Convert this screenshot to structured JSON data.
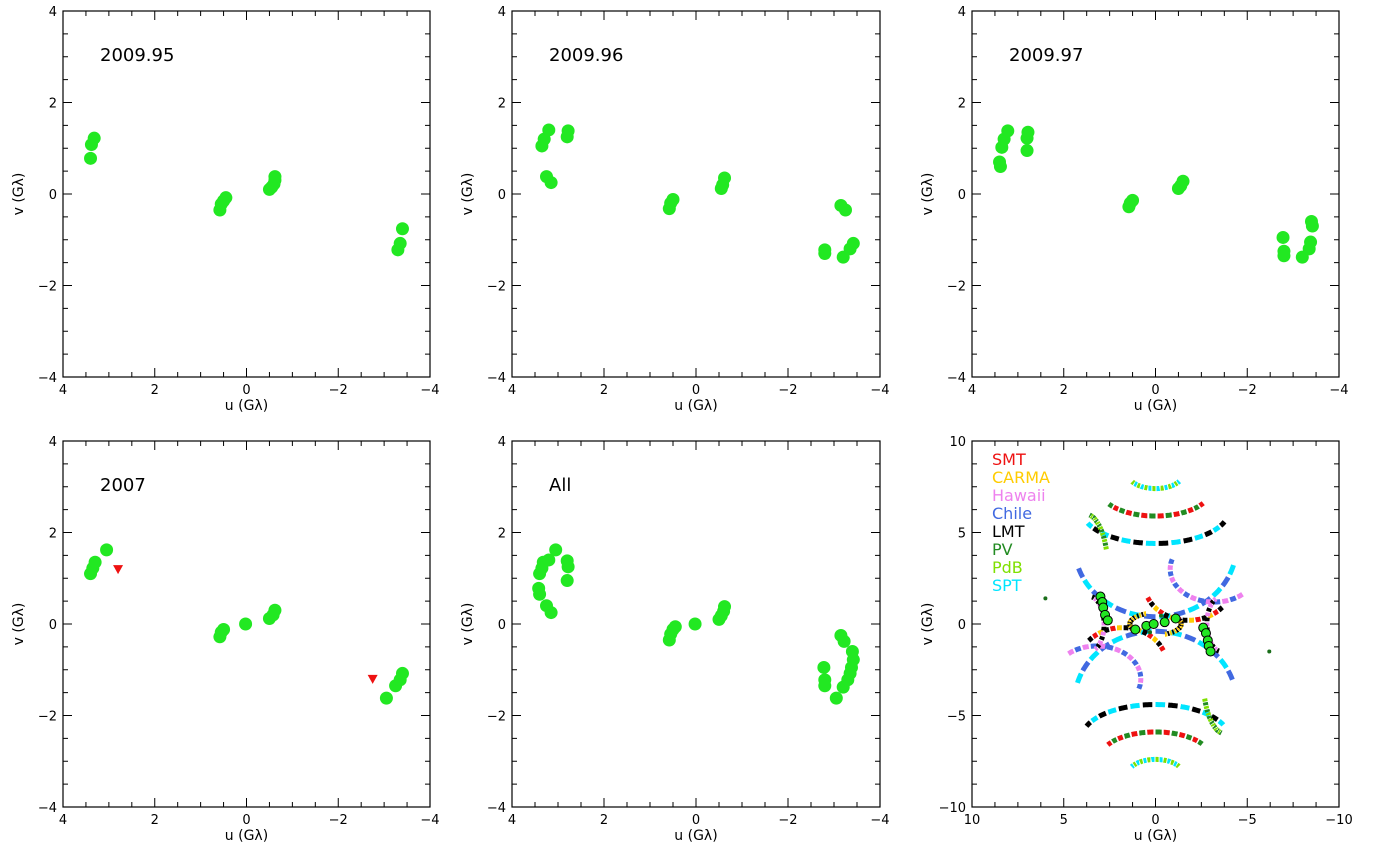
{
  "colors": {
    "point": "#22e822",
    "nondetection": "#ee1111",
    "SMT": "#ee1111",
    "CARMA": "#ffcc00",
    "Hawaii": "#ee82ee",
    "Chile": "#4169e1",
    "LMT": "#000000",
    "PV": "#228b22",
    "PdB": "#7fe000",
    "SPT": "#00e5ff"
  },
  "chart_data": [
    {
      "type": "scatter",
      "label": "2009.95",
      "xlabel": "u (Gλ)",
      "ylabel": "v (Gλ)",
      "xlim": [
        4,
        -4
      ],
      "ylim": [
        -4,
        4
      ],
      "xticks": [
        4,
        2,
        0,
        -2,
        -4
      ],
      "yticks": [
        -4,
        -2,
        0,
        2,
        4
      ],
      "points": [
        [
          3.4,
          0.78
        ],
        [
          3.38,
          1.08
        ],
        [
          3.32,
          1.22
        ],
        [
          0.58,
          -0.35
        ],
        [
          0.55,
          -0.22
        ],
        [
          0.5,
          -0.15
        ],
        [
          0.45,
          -0.08
        ],
        [
          -0.5,
          0.1
        ],
        [
          -0.55,
          0.15
        ],
        [
          -0.6,
          0.22
        ],
        [
          -0.62,
          0.3
        ],
        [
          -0.62,
          0.38
        ],
        [
          -3.3,
          -1.22
        ],
        [
          -3.35,
          -1.08
        ],
        [
          -3.4,
          -0.76
        ]
      ],
      "nondetections": []
    },
    {
      "type": "scatter",
      "label": "2009.96",
      "xlabel": "u (Gλ)",
      "ylabel": "v (Gλ)",
      "xlim": [
        4,
        -4
      ],
      "ylim": [
        -4,
        4
      ],
      "xticks": [
        4,
        2,
        0,
        -2,
        -4
      ],
      "yticks": [
        -4,
        -2,
        0,
        2,
        4
      ],
      "points": [
        [
          3.35,
          1.05
        ],
        [
          3.3,
          1.2
        ],
        [
          3.2,
          1.4
        ],
        [
          2.8,
          1.25
        ],
        [
          2.78,
          1.38
        ],
        [
          3.25,
          0.38
        ],
        [
          3.15,
          0.25
        ],
        [
          0.58,
          -0.32
        ],
        [
          0.55,
          -0.2
        ],
        [
          0.5,
          -0.12
        ],
        [
          -0.55,
          0.12
        ],
        [
          -0.58,
          0.2
        ],
        [
          -0.62,
          0.35
        ],
        [
          -2.8,
          -1.3
        ],
        [
          -2.8,
          -1.22
        ],
        [
          -3.15,
          -0.25
        ],
        [
          -3.25,
          -0.35
        ],
        [
          -3.2,
          -1.38
        ],
        [
          -3.35,
          -1.2
        ],
        [
          -3.42,
          -1.08
        ]
      ],
      "nondetections": []
    },
    {
      "type": "scatter",
      "label": "2009.97",
      "xlabel": "u (Gλ)",
      "ylabel": "v (Gλ)",
      "xlim": [
        4,
        -4
      ],
      "ylim": [
        -4,
        4
      ],
      "xticks": [
        4,
        2,
        0,
        -2,
        -4
      ],
      "yticks": [
        -4,
        -2,
        0,
        2,
        4
      ],
      "points": [
        [
          3.4,
          0.7
        ],
        [
          3.38,
          0.6
        ],
        [
          3.35,
          1.02
        ],
        [
          3.3,
          1.2
        ],
        [
          3.22,
          1.38
        ],
        [
          2.8,
          1.22
        ],
        [
          2.78,
          1.35
        ],
        [
          2.8,
          0.95
        ],
        [
          0.58,
          -0.28
        ],
        [
          0.55,
          -0.2
        ],
        [
          0.5,
          -0.14
        ],
        [
          -0.5,
          0.12
        ],
        [
          -0.55,
          0.18
        ],
        [
          -0.6,
          0.28
        ],
        [
          -2.78,
          -0.95
        ],
        [
          -2.8,
          -1.25
        ],
        [
          -2.8,
          -1.35
        ],
        [
          -3.2,
          -1.38
        ],
        [
          -3.35,
          -1.2
        ],
        [
          -3.38,
          -1.05
        ],
        [
          -3.4,
          -0.6
        ],
        [
          -3.42,
          -0.7
        ]
      ],
      "nondetections": []
    },
    {
      "type": "scatter",
      "label": "2007",
      "xlabel": "u (Gλ)",
      "ylabel": "v (Gλ)",
      "xlim": [
        4,
        -4
      ],
      "ylim": [
        -4,
        4
      ],
      "xticks": [
        4,
        2,
        0,
        -2,
        -4
      ],
      "yticks": [
        -4,
        -2,
        0,
        2,
        4
      ],
      "points": [
        [
          3.4,
          1.1
        ],
        [
          3.35,
          1.22
        ],
        [
          3.3,
          1.35
        ],
        [
          3.05,
          1.62
        ],
        [
          0.58,
          -0.28
        ],
        [
          0.55,
          -0.18
        ],
        [
          0.5,
          -0.12
        ],
        [
          0.02,
          0.0
        ],
        [
          -0.5,
          0.12
        ],
        [
          -0.58,
          0.2
        ],
        [
          -0.62,
          0.3
        ],
        [
          -3.05,
          -1.62
        ],
        [
          -3.25,
          -1.35
        ],
        [
          -3.35,
          -1.22
        ],
        [
          -3.4,
          -1.08
        ]
      ],
      "nondetections": [
        [
          2.8,
          1.2
        ],
        [
          -2.75,
          -1.2
        ]
      ]
    },
    {
      "type": "scatter",
      "label": "All",
      "xlabel": "u (Gλ)",
      "ylabel": "v (Gλ)",
      "xlim": [
        4,
        -4
      ],
      "ylim": [
        -4,
        4
      ],
      "xticks": [
        4,
        2,
        0,
        -2,
        -4
      ],
      "yticks": [
        -4,
        -2,
        0,
        2,
        4
      ],
      "points": [
        [
          3.42,
          0.78
        ],
        [
          3.4,
          0.65
        ],
        [
          3.4,
          1.1
        ],
        [
          3.35,
          1.22
        ],
        [
          3.32,
          1.35
        ],
        [
          3.2,
          1.4
        ],
        [
          3.25,
          0.4
        ],
        [
          3.15,
          0.25
        ],
        [
          3.05,
          1.62
        ],
        [
          2.8,
          0.95
        ],
        [
          2.78,
          1.25
        ],
        [
          2.8,
          1.38
        ],
        [
          0.58,
          -0.35
        ],
        [
          0.55,
          -0.22
        ],
        [
          0.5,
          -0.12
        ],
        [
          0.45,
          -0.06
        ],
        [
          0.02,
          0.0
        ],
        [
          -0.5,
          0.1
        ],
        [
          -0.55,
          0.18
        ],
        [
          -0.6,
          0.28
        ],
        [
          -0.62,
          0.38
        ],
        [
          -2.78,
          -0.95
        ],
        [
          -2.8,
          -1.22
        ],
        [
          -2.8,
          -1.35
        ],
        [
          -3.05,
          -1.62
        ],
        [
          -3.15,
          -0.25
        ],
        [
          -3.22,
          -0.38
        ],
        [
          -3.2,
          -1.38
        ],
        [
          -3.3,
          -1.22
        ],
        [
          -3.35,
          -1.08
        ],
        [
          -3.4,
          -0.6
        ],
        [
          -3.42,
          -0.78
        ],
        [
          -3.38,
          -0.95
        ]
      ],
      "nondetections": []
    },
    {
      "type": "scatter",
      "label": "",
      "xlabel": "u (Gλ)",
      "ylabel": "v (Gλ)",
      "xlim": [
        10,
        -10
      ],
      "ylim": [
        -10,
        10
      ],
      "xticks": [
        10,
        5,
        0,
        -5,
        -10
      ],
      "yticks": [
        -10,
        -5,
        0,
        5,
        10
      ],
      "legend": [
        "SMT",
        "CARMA",
        "Hawaii",
        "Chile",
        "LMT",
        "PV",
        "PdB",
        "SPT"
      ],
      "points": [
        [
          3.0,
          1.5
        ],
        [
          2.9,
          1.2
        ],
        [
          2.85,
          0.9
        ],
        [
          2.75,
          0.5
        ],
        [
          2.6,
          0.2
        ],
        [
          1.1,
          -0.3
        ],
        [
          0.5,
          -0.1
        ],
        [
          0.1,
          0.0
        ],
        [
          -0.5,
          0.1
        ],
        [
          -1.1,
          0.3
        ],
        [
          -2.6,
          -0.2
        ],
        [
          -2.75,
          -0.5
        ],
        [
          -2.85,
          -0.9
        ],
        [
          -2.9,
          -1.2
        ],
        [
          -3.0,
          -1.5
        ]
      ],
      "tracks": [
        {
          "cx": 0,
          "cy": 4.2,
          "rx": 4.4,
          "ry": 3.8,
          "a0": 195,
          "a1": 345,
          "colors": [
            "SPT",
            "Chile"
          ]
        },
        {
          "cx": 0,
          "cy": -4.2,
          "rx": 4.4,
          "ry": 3.8,
          "a0": 15,
          "a1": 165,
          "colors": [
            "SPT",
            "Chile"
          ]
        },
        {
          "cx": 0,
          "cy": 6.2,
          "rx": 4.0,
          "ry": 1.8,
          "a0": 200,
          "a1": 340,
          "colors": [
            "LMT",
            "SPT"
          ]
        },
        {
          "cx": 0,
          "cy": -6.2,
          "rx": 4.0,
          "ry": 1.8,
          "a0": 20,
          "a1": 160,
          "colors": [
            "LMT",
            "SPT"
          ]
        },
        {
          "cx": 0,
          "cy": 7.3,
          "rx": 3.0,
          "ry": 1.4,
          "a0": 210,
          "a1": 330,
          "colors": [
            "SMT",
            "PV"
          ]
        },
        {
          "cx": 0,
          "cy": -7.3,
          "rx": 3.0,
          "ry": 1.4,
          "a0": 30,
          "a1": 150,
          "colors": [
            "SMT",
            "PV"
          ]
        },
        {
          "cx": 0,
          "cy": 8.2,
          "rx": 1.5,
          "ry": 0.8,
          "a0": 210,
          "a1": 330,
          "colors": [
            "SPT",
            "PdB"
          ]
        },
        {
          "cx": 0,
          "cy": -8.2,
          "rx": 1.5,
          "ry": 0.8,
          "a0": 30,
          "a1": 150,
          "colors": [
            "SPT",
            "PdB"
          ]
        },
        {
          "cx": -3.2,
          "cy": 3.0,
          "rx": 2.4,
          "ry": 1.8,
          "a0": 230,
          "a1": 380,
          "colors": [
            "Hawaii",
            "Chile"
          ]
        },
        {
          "cx": 3.2,
          "cy": -3.0,
          "rx": 2.4,
          "ry": 1.8,
          "a0": 50,
          "a1": 200,
          "colors": [
            "Hawaii",
            "Chile"
          ]
        },
        {
          "cx": -1.8,
          "cy": 2.2,
          "rx": 2.4,
          "ry": 2.0,
          "a0": 220,
          "a1": 340,
          "colors": [
            "LMT",
            "SMT",
            "CARMA"
          ]
        },
        {
          "cx": 1.8,
          "cy": -2.2,
          "rx": 2.4,
          "ry": 2.0,
          "a0": 40,
          "a1": 160,
          "colors": [
            "LMT",
            "SMT",
            "CARMA"
          ]
        },
        {
          "cx": -3.6,
          "cy": 0.0,
          "rx": 0.8,
          "ry": 1.5,
          "a0": 280,
          "a1": 430,
          "colors": [
            "LMT",
            "Hawaii"
          ]
        },
        {
          "cx": 3.6,
          "cy": 0.0,
          "rx": 0.8,
          "ry": 1.5,
          "a0": 100,
          "a1": 250,
          "colors": [
            "LMT",
            "Hawaii"
          ]
        },
        {
          "cx": 0.0,
          "cy": 0.0,
          "rx": 1.4,
          "ry": 0.6,
          "a0": 160,
          "a1": 250,
          "colors": [
            "LMT",
            "CARMA"
          ]
        },
        {
          "cx": 0.0,
          "cy": 0.0,
          "rx": 1.4,
          "ry": 0.6,
          "a0": 340,
          "a1": 430,
          "colors": [
            "LMT",
            "CARMA"
          ]
        },
        {
          "cx": 3.8,
          "cy": 3.0,
          "rx": 1.2,
          "ry": 3.0,
          "a0": 100,
          "a1": 160,
          "colors": [
            "PV",
            "PdB"
          ]
        },
        {
          "cx": -3.8,
          "cy": -3.0,
          "rx": 1.2,
          "ry": 3.0,
          "a0": 280,
          "a1": 340,
          "colors": [
            "PV",
            "PdB"
          ]
        }
      ],
      "isolated_points": [
        [
          6.0,
          1.4
        ],
        [
          -6.2,
          -1.5
        ],
        [
          0.3,
          -0.45
        ],
        [
          -0.3,
          0.45
        ]
      ]
    }
  ]
}
